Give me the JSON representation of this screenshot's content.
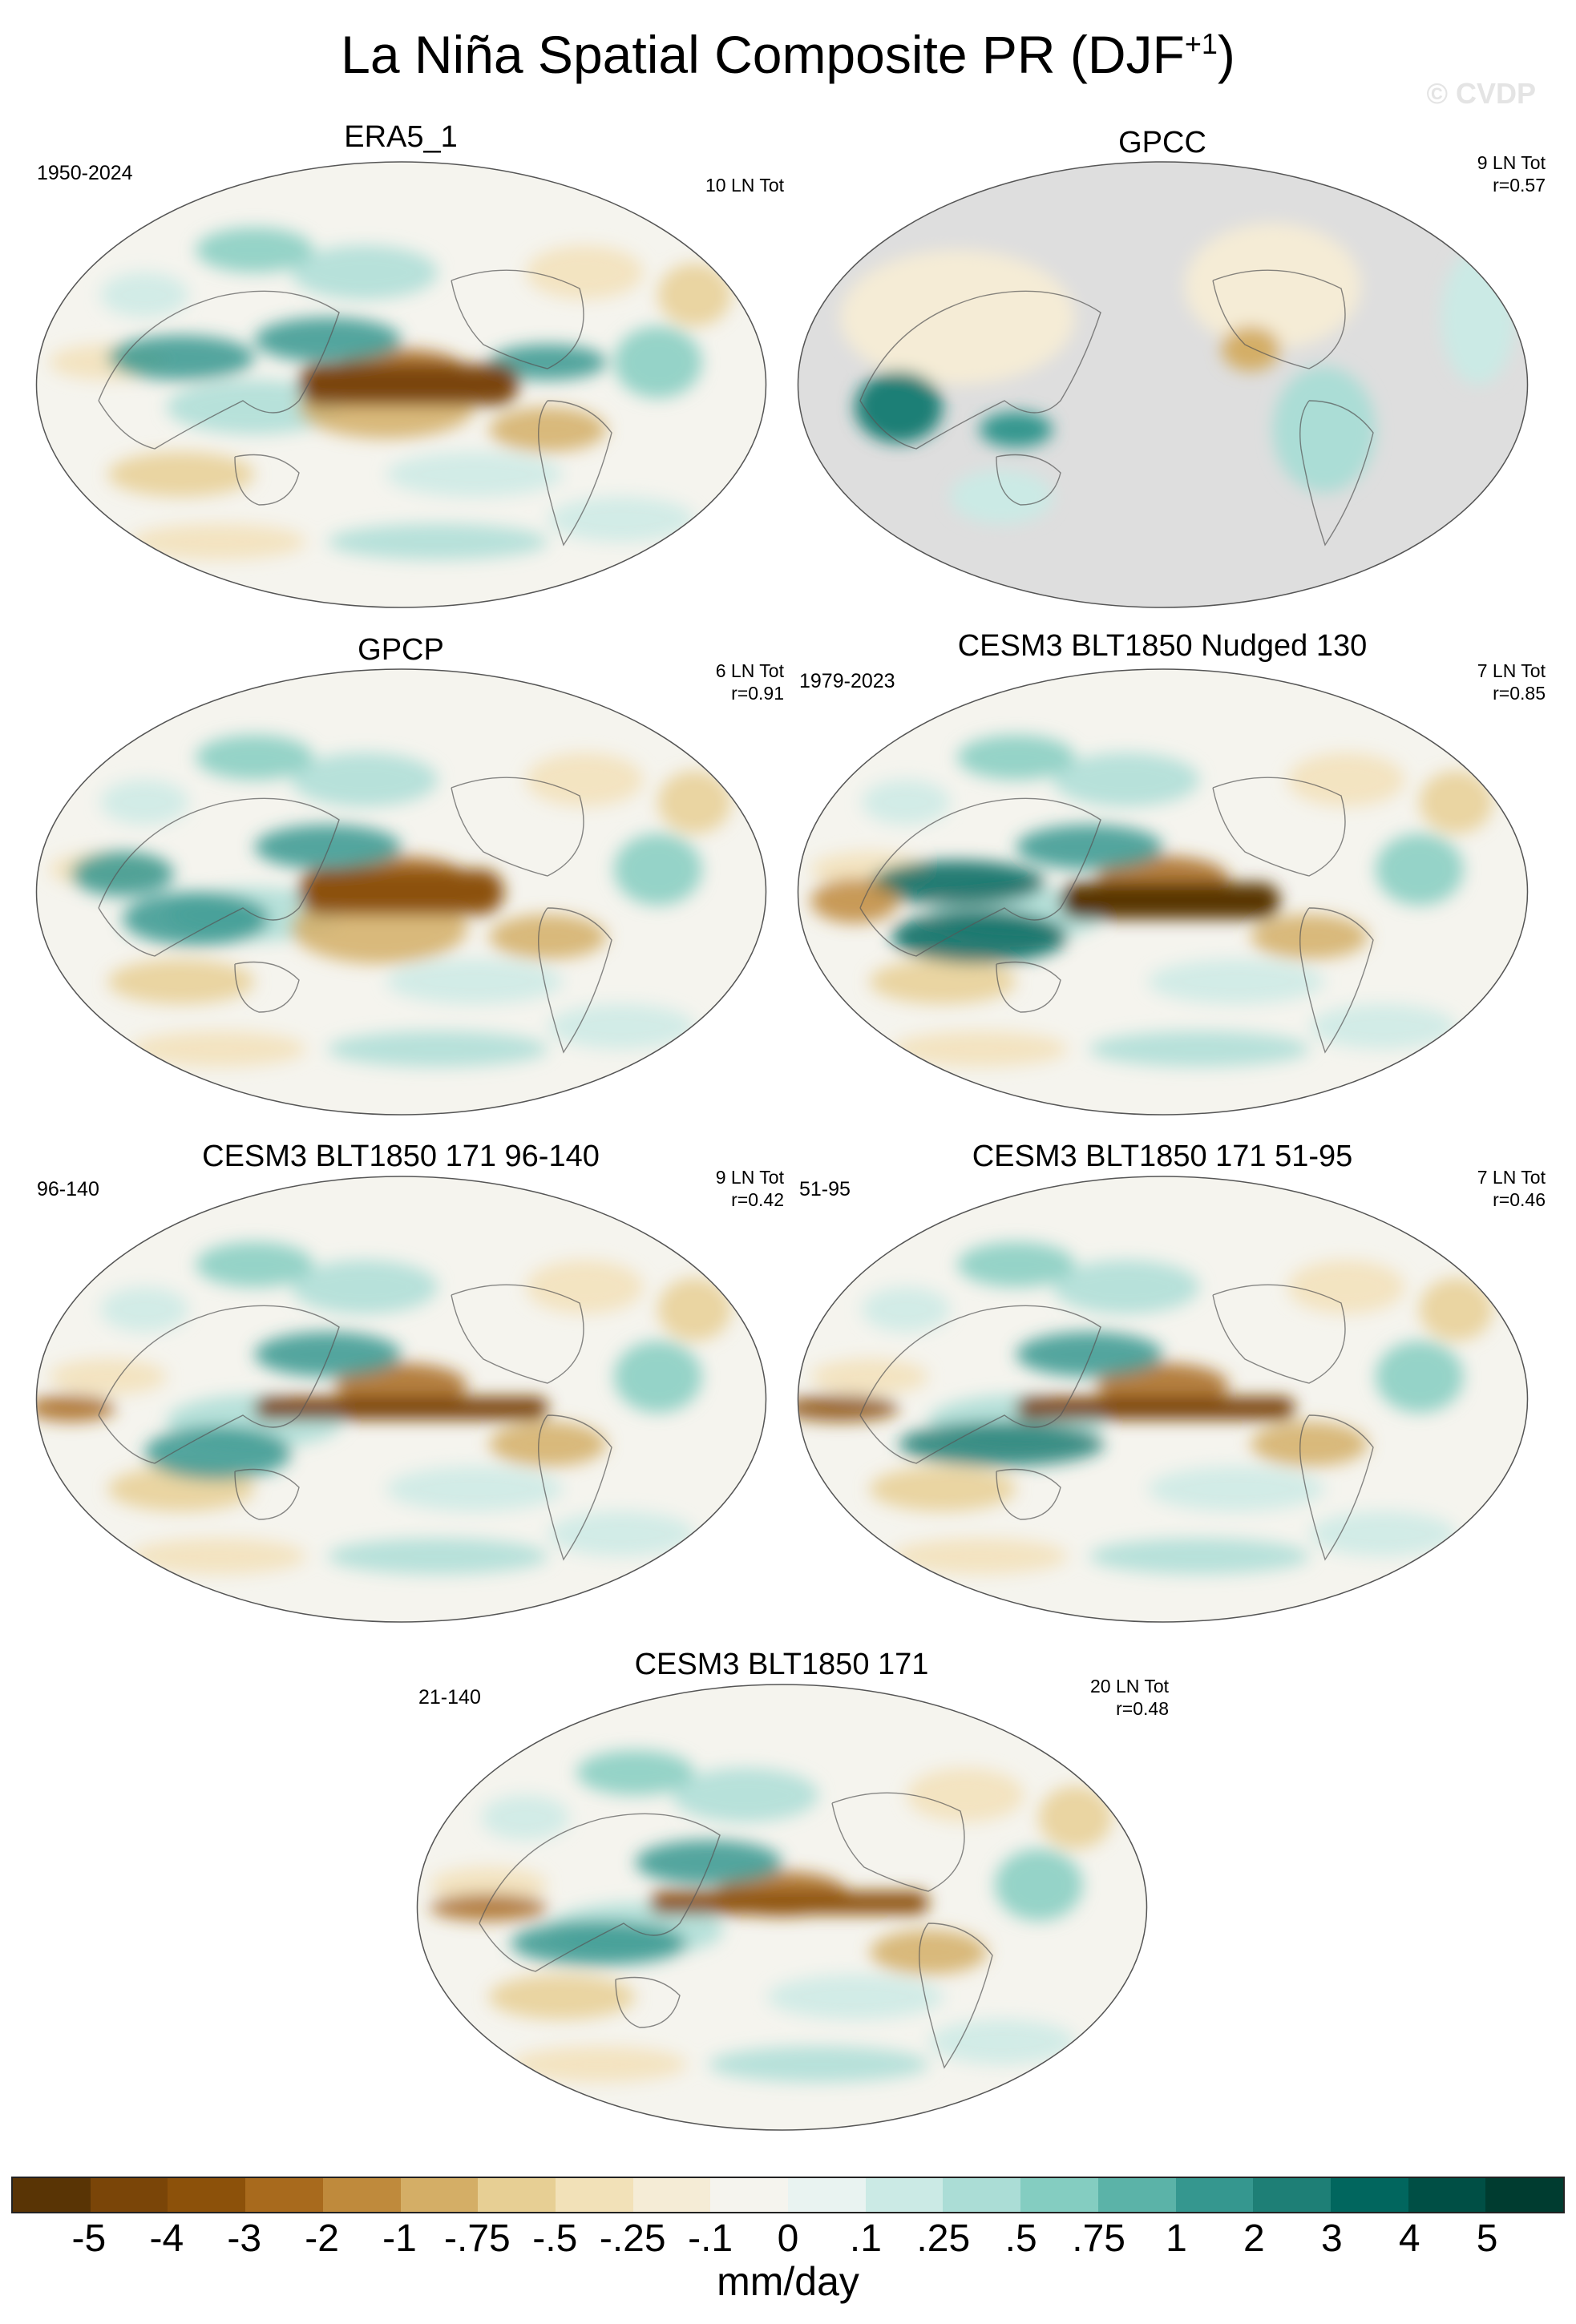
{
  "title": "La Niña Spatial Composite PR (DJF",
  "title_sup": "+1",
  "title_close": ")",
  "watermark": "© CVDP",
  "panels": [
    {
      "name": "ERA5_1",
      "left_note": "1950-2024",
      "right_note": [
        "10 LN Tot",
        ""
      ]
    },
    {
      "name": "GPCC",
      "left_note": "",
      "right_note": [
        "9 LN Tot",
        "r=0.57"
      ]
    },
    {
      "name": "GPCP",
      "left_note": "",
      "right_note": [
        "6 LN Tot",
        "r=0.91"
      ]
    },
    {
      "name": "CESM3 BLT1850 Nudged 130",
      "left_note": "1979-2023",
      "right_note": [
        "7 LN Tot",
        "r=0.85"
      ]
    },
    {
      "name": "CESM3 BLT1850 171 96-140",
      "left_note": "96-140",
      "right_note": [
        "9 LN Tot",
        "r=0.42"
      ]
    },
    {
      "name": "CESM3 BLT1850 171 51-95",
      "left_note": "51-95",
      "right_note": [
        "7 LN Tot",
        "r=0.46"
      ]
    },
    {
      "name": "CESM3 BLT1850 171",
      "left_note": "21-140",
      "right_note": [
        "20 LN Tot",
        "r=0.48"
      ]
    }
  ],
  "colorbar": {
    "colors": [
      "#593405",
      "#7a4508",
      "#8c510a",
      "#a86a1d",
      "#bf8a3c",
      "#d4ae66",
      "#e7cf94",
      "#f2e1b8",
      "#f5ecd6",
      "#f5f4ee",
      "#e9f3f1",
      "#cbeae5",
      "#abddd6",
      "#84cdc1",
      "#5bb3a8",
      "#35978f",
      "#1e7f76",
      "#01665e",
      "#004f45",
      "#003c30"
    ],
    "labels": [
      "-5",
      "-4",
      "-3",
      "-2",
      "-1",
      "-.75",
      "-.5",
      "-.25",
      "-.1",
      "0",
      ".1",
      ".25",
      ".5",
      ".75",
      "1",
      "2",
      "3",
      "4",
      "5"
    ],
    "units": "mm/day"
  }
}
